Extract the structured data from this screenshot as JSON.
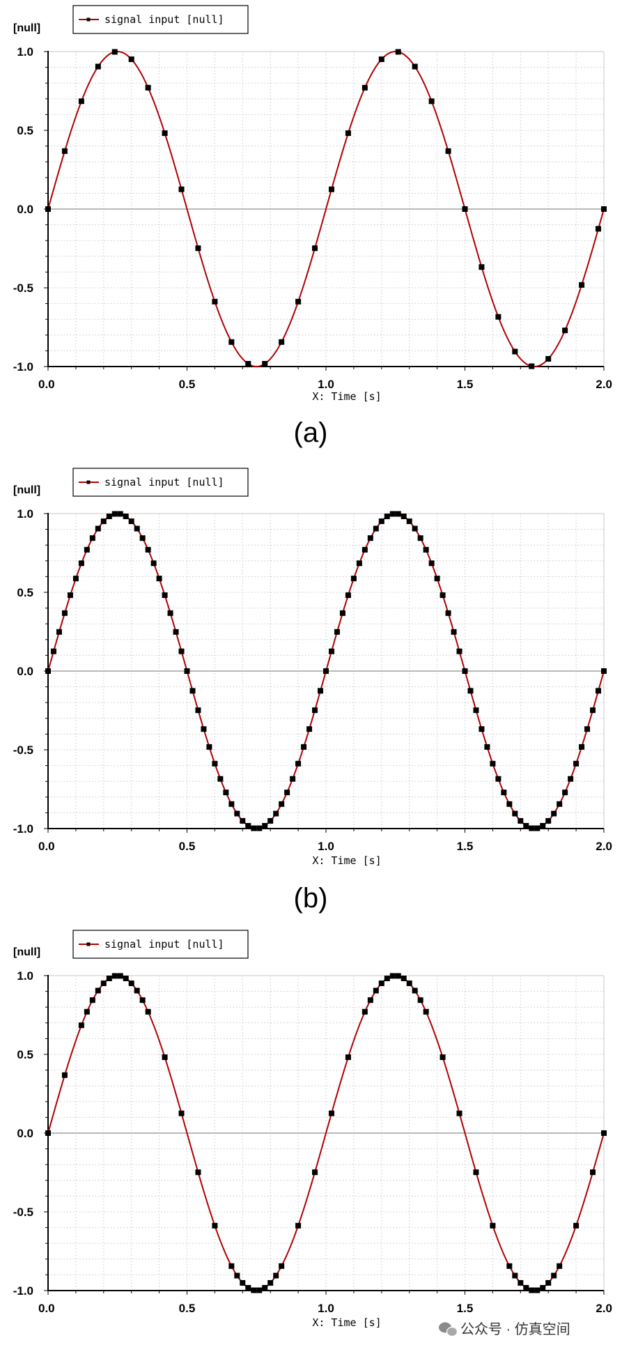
{
  "colors": {
    "line": "#b00000",
    "marker": "#000000",
    "grid": "#c8c8c8",
    "zero_line": "#a0a0a0",
    "frame": "#000000",
    "legend_border": "#000000",
    "background": "#ffffff"
  },
  "watermark": {
    "icon": "wechat-icon",
    "text": "公众号 · 仿真空间"
  },
  "chart_data": [
    {
      "type": "line",
      "caption": "(a)",
      "ylabel": "[null]",
      "xlabel": "X: Time [s]",
      "legend": "signal input [null]",
      "legend_position": "top-left",
      "xlim": [
        0,
        2
      ],
      "ylim": [
        -1,
        1
      ],
      "xticks": [
        "0.0",
        "0.5",
        "1.0",
        "1.5",
        "2.0"
      ],
      "yticks": [
        "1.0",
        "0.5",
        "0.0",
        "-0.5",
        "-1.0"
      ],
      "grid": true,
      "series": [
        {
          "name": "signal input [null]",
          "function": "sin(2*pi*t)",
          "sample_times": [
            0,
            0.06,
            0.12,
            0.18,
            0.24,
            0.3,
            0.36,
            0.42,
            0.48,
            0.54,
            0.6,
            0.66,
            0.72,
            0.78,
            0.84,
            0.9,
            0.96,
            1.02,
            1.08,
            1.14,
            1.2,
            1.26,
            1.32,
            1.38,
            1.44,
            1.5,
            1.56,
            1.62,
            1.68,
            1.74,
            1.8,
            1.86,
            1.92,
            1.98,
            2.0
          ]
        }
      ]
    },
    {
      "type": "line",
      "caption": "(b)",
      "ylabel": "[null]",
      "xlabel": "X: Time [s]",
      "legend": "signal input [null]",
      "legend_position": "top-left",
      "xlim": [
        0,
        2
      ],
      "ylim": [
        -1,
        1
      ],
      "xticks": [
        "0.0",
        "0.5",
        "1.0",
        "1.5",
        "2.0"
      ],
      "yticks": [
        "1.0",
        "0.5",
        "0.0",
        "-0.5",
        "-1.0"
      ],
      "grid": true,
      "series": [
        {
          "name": "signal input [null]",
          "function": "sin(2*pi*t)",
          "sample_step": 0.02,
          "sample_range": [
            0,
            2
          ]
        }
      ]
    },
    {
      "type": "line",
      "caption": "",
      "ylabel": "[null]",
      "xlabel": "X: Time [s]",
      "legend": "signal input [null]",
      "legend_position": "top-left",
      "xlim": [
        0,
        2
      ],
      "ylim": [
        -1,
        1
      ],
      "xticks": [
        "0.0",
        "0.5",
        "1.0",
        "1.5",
        "2.0"
      ],
      "yticks": [
        "1.0",
        "0.5",
        "0.0",
        "-0.5",
        "-1.0"
      ],
      "grid": true,
      "series": [
        {
          "name": "signal input [null]",
          "function": "sin(2*pi*t)",
          "sample_times": [
            0,
            0.06,
            0.12,
            0.14,
            0.16,
            0.18,
            0.2,
            0.22,
            0.24,
            0.26,
            0.28,
            0.3,
            0.32,
            0.34,
            0.36,
            0.42,
            0.48,
            0.54,
            0.6,
            0.66,
            0.68,
            0.7,
            0.72,
            0.74,
            0.76,
            0.78,
            0.8,
            0.82,
            0.84,
            0.9,
            0.96,
            1.02,
            1.08,
            1.14,
            1.16,
            1.18,
            1.2,
            1.22,
            1.24,
            1.26,
            1.28,
            1.3,
            1.32,
            1.34,
            1.36,
            1.42,
            1.48,
            1.54,
            1.6,
            1.66,
            1.68,
            1.7,
            1.72,
            1.74,
            1.76,
            1.78,
            1.8,
            1.82,
            1.84,
            1.9,
            1.96,
            2.0
          ]
        }
      ]
    }
  ]
}
